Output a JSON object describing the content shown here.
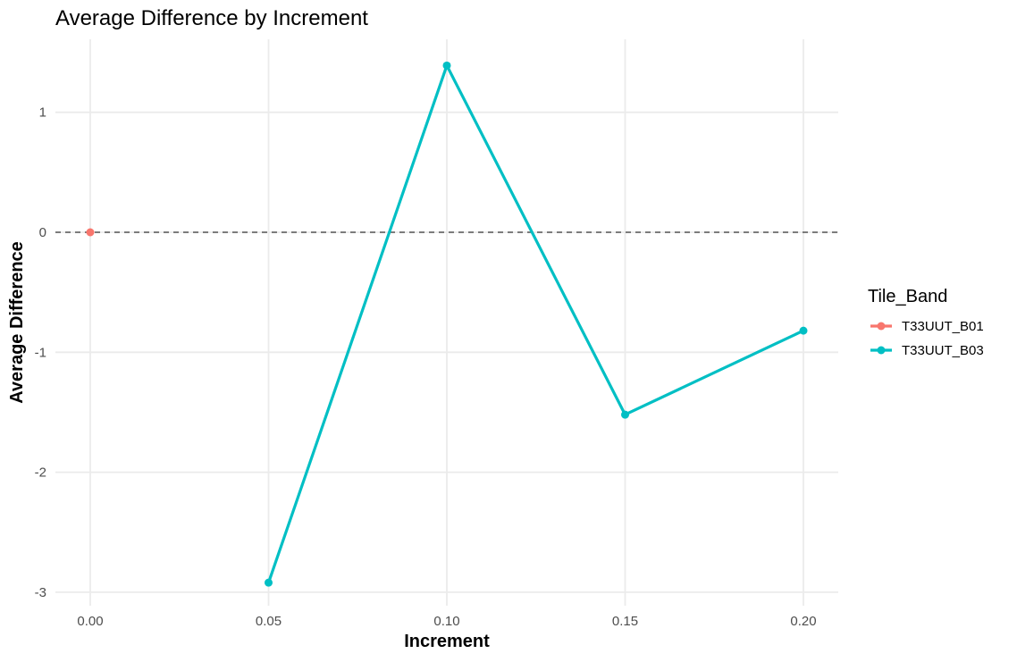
{
  "chart_data": {
    "type": "line",
    "title": "Average Difference by Increment",
    "xlabel": "Increment",
    "ylabel": "Average Difference",
    "xlim": [
      -0.01,
      0.21
    ],
    "ylim": [
      -3.1,
      1.6
    ],
    "x_ticks": [
      0.0,
      0.05,
      0.1,
      0.15,
      0.2
    ],
    "x_tick_labels": [
      "0.00",
      "0.05",
      "0.10",
      "0.15",
      "0.20"
    ],
    "y_ticks": [
      -3,
      -2,
      -1,
      0,
      1
    ],
    "y_tick_labels": [
      "-3",
      "-2",
      "-1",
      "0",
      "1"
    ],
    "reference_line": {
      "y": 0,
      "style": "dashed",
      "color": "#555555"
    },
    "grid": true,
    "legend": {
      "title": "Tile_Band",
      "position": "right"
    },
    "series": [
      {
        "name": "T33UUT_B01",
        "color": "#F8766D",
        "points": [
          {
            "x": 0.0,
            "y": 0.0
          }
        ]
      },
      {
        "name": "T33UUT_B03",
        "color": "#00BFC4",
        "points": [
          {
            "x": 0.05,
            "y": -2.92
          },
          {
            "x": 0.1,
            "y": 1.39
          },
          {
            "x": 0.15,
            "y": -1.52
          },
          {
            "x": 0.2,
            "y": -0.82
          }
        ]
      }
    ]
  }
}
